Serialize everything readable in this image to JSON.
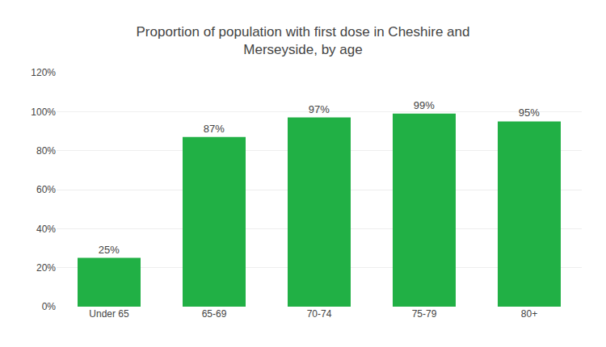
{
  "chart_data": {
    "type": "bar",
    "title": "Proportion of population with first dose in Cheshire and\nMerseyside, by age",
    "categories": [
      "Under 65",
      "65-69",
      "70-74",
      "75-79",
      "80+"
    ],
    "values": [
      25,
      87,
      97,
      99,
      95
    ],
    "value_labels": [
      "25%",
      "87%",
      "97%",
      "99%",
      "95%"
    ],
    "data_labels": true,
    "color": "#21b045",
    "ylim": [
      0,
      120
    ],
    "yticks": [
      {
        "value": 0,
        "label": "0%"
      },
      {
        "value": 20,
        "label": "20%"
      },
      {
        "value": 40,
        "label": "40%"
      },
      {
        "value": 60,
        "label": "60%"
      },
      {
        "value": 80,
        "label": "80%"
      },
      {
        "value": 100,
        "label": "100%"
      },
      {
        "value": 120,
        "label": "120%"
      }
    ],
    "grid": true
  }
}
